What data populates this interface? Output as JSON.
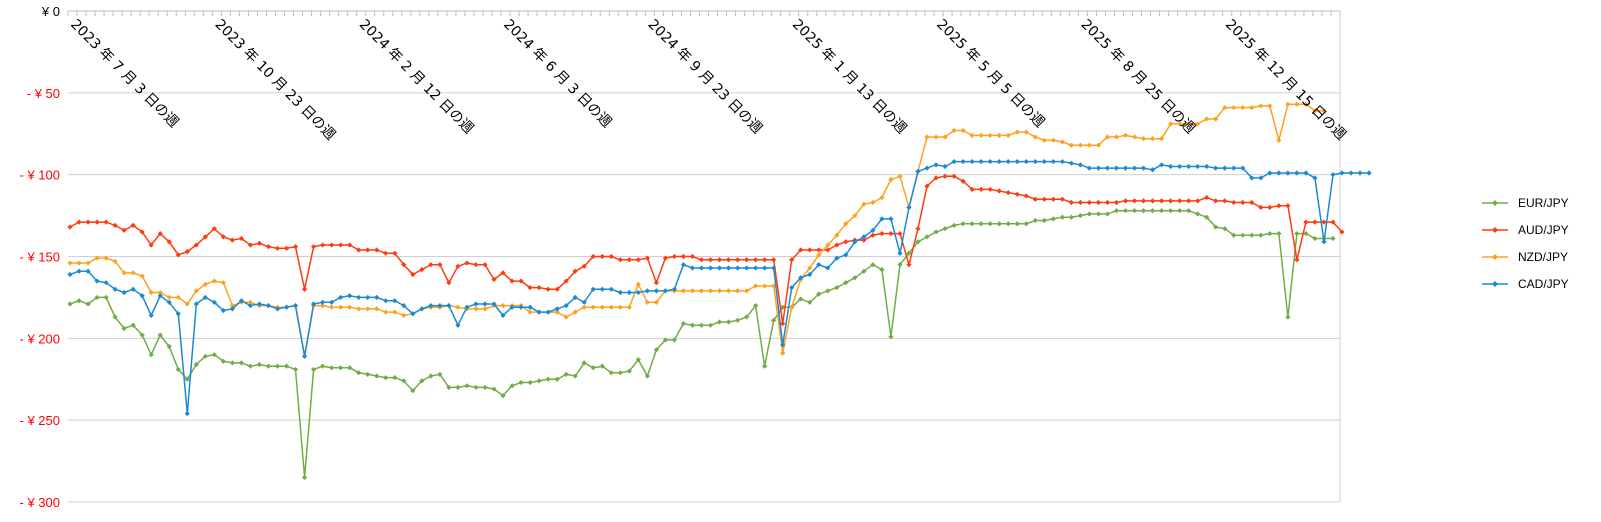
{
  "chart_data": {
    "type": "line",
    "title": "",
    "xlabel": "",
    "ylabel": "",
    "ylim": [
      -300,
      0
    ],
    "grid": true,
    "legend_position": "right",
    "yticks": [
      {
        "value": 0,
        "label": "¥ 0",
        "color": "#000000"
      },
      {
        "value": -50,
        "label": "- ¥ 50",
        "color": "#ff0000"
      },
      {
        "value": -100,
        "label": "- ¥ 100",
        "color": "#ff0000"
      },
      {
        "value": -150,
        "label": "- ¥ 150",
        "color": "#ff0000"
      },
      {
        "value": -200,
        "label": "- ¥ 200",
        "color": "#ff0000"
      },
      {
        "value": -250,
        "label": "- ¥ 250",
        "color": "#ff0000"
      },
      {
        "value": -300,
        "label": "- ¥ 300",
        "color": "#ff0000"
      }
    ],
    "xtick_labels": [
      {
        "index": 0,
        "label": "2023 年 7 月 3 日の週"
      },
      {
        "index": 16,
        "label": "2023 年 10 月 23 日の週"
      },
      {
        "index": 32,
        "label": "2024 年 2 月 12 日の週"
      },
      {
        "index": 48,
        "label": "2024 年 6 月 3 日の週"
      },
      {
        "index": 64,
        "label": "2024 年 9 月 23 日の週"
      },
      {
        "index": 80,
        "label": "2025 年 1 月 13 日の週"
      },
      {
        "index": 96,
        "label": "2025 年 5 月 5 日の週"
      },
      {
        "index": 112,
        "label": "2025 年 8 月 25 日の週"
      },
      {
        "index": 128,
        "label": "2025 年 12 月 15 日の週"
      }
    ],
    "series": [
      {
        "name": "EUR/JPY",
        "color": "#70ad47",
        "values": [
          -179,
          -177,
          -179,
          -175,
          -175,
          -187,
          -194,
          -192,
          -198,
          -210,
          -198,
          -205,
          -219,
          -225,
          -216,
          -211,
          -210,
          -214,
          -215,
          -215,
          -217,
          -216,
          -217,
          -217,
          -217,
          -219,
          -285,
          -219,
          -217,
          -218,
          -218,
          -218,
          -221,
          -222,
          -223,
          -224,
          -224,
          -226,
          -232,
          -226,
          -223,
          -222,
          -230,
          -230,
          -229,
          -230,
          -230,
          -231,
          -235,
          -229,
          -227,
          -227,
          -226,
          -225,
          -225,
          -222,
          -223,
          -215,
          -218,
          -217,
          -221,
          -221,
          -220,
          -213,
          -223,
          -207,
          -201,
          -201,
          -191,
          -192,
          -192,
          -192,
          -190,
          -190,
          -189,
          -187,
          -180,
          -217,
          -189,
          -181,
          -181,
          -176,
          -178,
          -173,
          -171,
          -169,
          -166,
          -163,
          -159,
          -155,
          -158,
          -199,
          -155,
          -148,
          -141,
          -138,
          -135,
          -133,
          -131,
          -130,
          -130,
          -130,
          -130,
          -130,
          -130,
          -130,
          -130,
          -128,
          -128,
          -127,
          -126,
          -126,
          -125,
          -124,
          -124,
          -124,
          -122,
          -122,
          -122,
          -122,
          -122,
          -122,
          -122,
          -122,
          -122,
          -124,
          -126,
          -132,
          -133,
          -137,
          -137,
          -137,
          -137,
          -136,
          -136,
          -187,
          -136,
          -136,
          -139,
          -139,
          -139
        ]
      },
      {
        "name": "AUD/JPY",
        "color": "#ff3b0f",
        "values": [
          -132,
          -129,
          -129,
          -129,
          -129,
          -131,
          -134,
          -131,
          -135,
          -143,
          -136,
          -141,
          -149,
          -147,
          -143,
          -138,
          -133,
          -138,
          -140,
          -139,
          -143,
          -142,
          -144,
          -145,
          -145,
          -144,
          -170,
          -144,
          -143,
          -143,
          -143,
          -143,
          -146,
          -146,
          -146,
          -148,
          -148,
          -155,
          -161,
          -158,
          -155,
          -155,
          -166,
          -156,
          -154,
          -155,
          -155,
          -164,
          -160,
          -165,
          -165,
          -169,
          -169,
          -170,
          -170,
          -165,
          -159,
          -156,
          -150,
          -150,
          -150,
          -152,
          -152,
          -152,
          -151,
          -166,
          -151,
          -150,
          -150,
          -150,
          -152,
          -152,
          -152,
          -152,
          -152,
          -152,
          -152,
          -152,
          -152,
          -191,
          -152,
          -146,
          -146,
          -146,
          -146,
          -143,
          -141,
          -140,
          -140,
          -137,
          -136,
          -136,
          -136,
          -155,
          -133,
          -107,
          -102,
          -101,
          -101,
          -104,
          -109,
          -109,
          -109,
          -110,
          -111,
          -112,
          -113,
          -115,
          -115,
          -115,
          -115,
          -117,
          -117,
          -117,
          -117,
          -117,
          -117,
          -116,
          -116,
          -116,
          -116,
          -116,
          -116,
          -116,
          -116,
          -116,
          -114,
          -116,
          -116,
          -117,
          -117,
          -117,
          -120,
          -120,
          -119,
          -119,
          -152,
          -129,
          -129,
          -129,
          -129,
          -135
        ]
      },
      {
        "name": "NZD/JPY",
        "color": "#ffa020",
        "values": [
          -154,
          -154,
          -154,
          -151,
          -151,
          -153,
          -160,
          -160,
          -162,
          -172,
          -172,
          -175,
          -175,
          -179,
          -171,
          -167,
          -165,
          -166,
          -180,
          -178,
          -178,
          -180,
          -180,
          -181,
          -181,
          -180,
          -211,
          -180,
          -180,
          -181,
          -181,
          -181,
          -182,
          -182,
          -182,
          -184,
          -184,
          -186,
          -185,
          -182,
          -181,
          -181,
          -180,
          -181,
          -182,
          -182,
          -182,
          -180,
          -180,
          -180,
          -180,
          -184,
          -184,
          -184,
          -184,
          -187,
          -184,
          -181,
          -181,
          -181,
          -181,
          -181,
          -181,
          -167,
          -178,
          -178,
          -171,
          -171,
          -171,
          -171,
          -171,
          -171,
          -171,
          -171,
          -171,
          -171,
          -168,
          -168,
          -168,
          -209,
          -181,
          -164,
          -157,
          -149,
          -143,
          -137,
          -130,
          -125,
          -118,
          -117,
          -114,
          -103,
          -101,
          -120,
          -98,
          -77,
          -77,
          -77,
          -73,
          -73,
          -76,
          -76,
          -76,
          -76,
          -76,
          -74,
          -74,
          -77,
          -79,
          -79,
          -80,
          -82,
          -82,
          -82,
          -82,
          -77,
          -77,
          -76,
          -77,
          -78,
          -78,
          -78,
          -69,
          -69,
          -69,
          -69,
          -66,
          -66,
          -59,
          -59,
          -59,
          -59,
          -58,
          -58,
          -79,
          -57,
          -57,
          -57,
          -61,
          -61
        ]
      },
      {
        "name": "CAD/JPY",
        "color": "#1a8ad4",
        "values": [
          -161,
          -159,
          -159,
          -165,
          -166,
          -170,
          -172,
          -170,
          -174,
          -186,
          -174,
          -178,
          -185,
          -246,
          -179,
          -175,
          -178,
          -183,
          -182,
          -177,
          -180,
          -179,
          -180,
          -182,
          -181,
          -180,
          -211,
          -179,
          -178,
          -178,
          -175,
          -174,
          -175,
          -175,
          -175,
          -177,
          -177,
          -180,
          -185,
          -182,
          -180,
          -180,
          -180,
          -192,
          -181,
          -179,
          -179,
          -179,
          -186,
          -181,
          -181,
          -181,
          -184,
          -184,
          -182,
          -180,
          -175,
          -178,
          -170,
          -170,
          -170,
          -172,
          -172,
          -172,
          -171,
          -171,
          -171,
          -170,
          -155,
          -157,
          -157,
          -157,
          -157,
          -157,
          -157,
          -157,
          -157,
          -157,
          -157,
          -204,
          -169,
          -163,
          -161,
          -155,
          -157,
          -151,
          -149,
          -141,
          -138,
          -134,
          -127,
          -127,
          -148,
          -120,
          -98,
          -96,
          -94,
          -95,
          -92,
          -92,
          -92,
          -92,
          -92,
          -92,
          -92,
          -92,
          -92,
          -92,
          -92,
          -92,
          -92,
          -93,
          -94,
          -96,
          -96,
          -96,
          -96,
          -96,
          -96,
          -96,
          -97,
          -94,
          -95,
          -95,
          -95,
          -95,
          -95,
          -96,
          -96,
          -96,
          -96,
          -102,
          -102,
          -99,
          -99,
          -99,
          -99,
          -99,
          -102,
          -141,
          -100,
          -99,
          -99,
          -99,
          -99
        ]
      }
    ]
  }
}
